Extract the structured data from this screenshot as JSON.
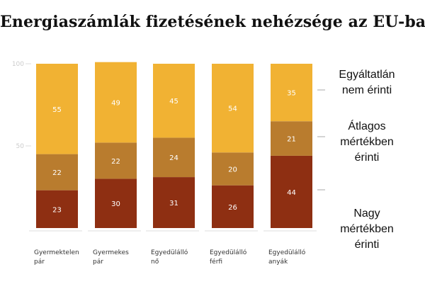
{
  "title": "Energiaszámlák fizetésének nehézsége az EU-ban",
  "chart_data": {
    "type": "bar",
    "stacked": true,
    "categories": [
      [
        "Gyermektelen",
        "pár"
      ],
      [
        "Gyermekes",
        "pár"
      ],
      [
        "Egyedülálló",
        "nő"
      ],
      [
        "Egyedülálló",
        "férfi"
      ],
      [
        "Egyedülálló",
        "anyák"
      ]
    ],
    "series": [
      {
        "name": [
          "Nagy",
          "mértékben",
          "érinti"
        ],
        "color": "#8e2f12",
        "values": [
          23,
          30,
          31,
          26,
          44
        ]
      },
      {
        "name": [
          "Átlagos",
          "mértékben",
          "érinti"
        ],
        "color": "#b97c2e",
        "values": [
          22,
          22,
          24,
          20,
          21
        ]
      },
      {
        "name": [
          "Egyáltatlán",
          "nem érinti"
        ],
        "color": "#f1b233",
        "values": [
          55,
          49,
          45,
          54,
          35
        ]
      }
    ],
    "ylim": [
      0,
      100
    ],
    "yticks": [
      50,
      100
    ],
    "ytick_labels": [
      "50",
      "100"
    ],
    "grid": false,
    "legend_position": "right"
  }
}
